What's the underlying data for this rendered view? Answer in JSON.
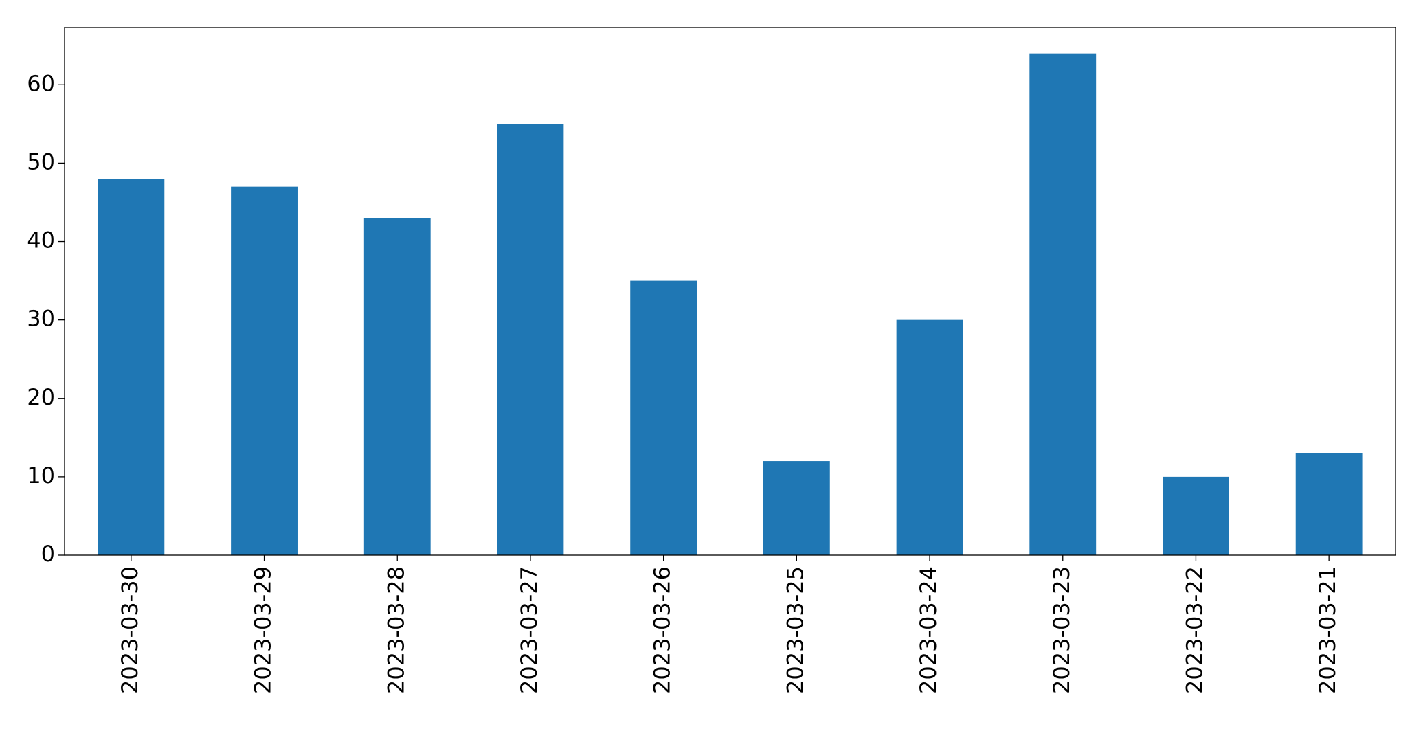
{
  "chart_data": {
    "type": "bar",
    "categories": [
      "2023-03-30",
      "2023-03-29",
      "2023-03-28",
      "2023-03-27",
      "2023-03-26",
      "2023-03-25",
      "2023-03-24",
      "2023-03-23",
      "2023-03-22",
      "2023-03-21"
    ],
    "values": [
      48,
      47,
      43,
      55,
      35,
      12,
      30,
      64,
      10,
      13
    ],
    "color": "#1f77b4",
    "ylim": [
      0,
      67.3
    ],
    "yticks": [
      0,
      10,
      20,
      30,
      40,
      50,
      60
    ],
    "grid": false
  }
}
